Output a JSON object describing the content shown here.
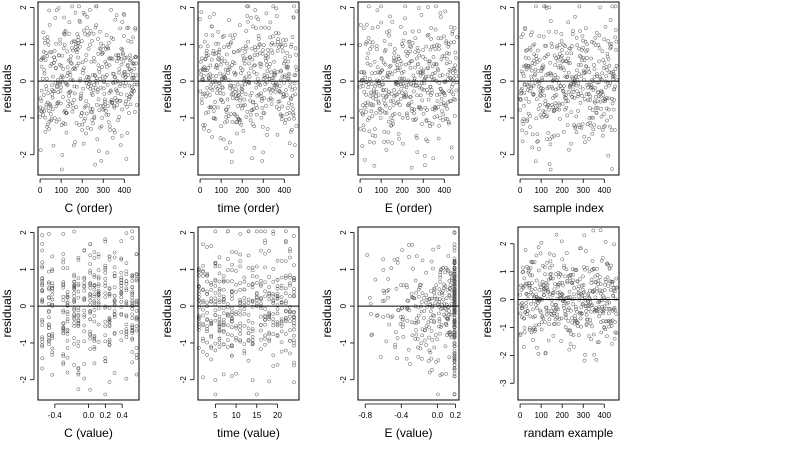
{
  "chart_data": [
    {
      "type": "scatter",
      "xlabel": "C (order)",
      "ylabel": "residuals",
      "xlim": [
        -10,
        470
      ],
      "ylim": [
        -2.55,
        2.15
      ],
      "xticks": [
        0,
        100,
        200,
        300,
        400
      ],
      "xtick_labels": [
        "0",
        "100",
        "200",
        "300",
        "400"
      ],
      "yticks": [
        -2,
        -1,
        0,
        1,
        2
      ],
      "ytick_labels": [
        "-2",
        "-1",
        "0",
        "1",
        "2"
      ],
      "hline": 0,
      "x_sequence": "index",
      "n": 460,
      "seed": 11
    },
    {
      "type": "scatter",
      "xlabel": "time (order)",
      "ylabel": "residuals",
      "xlim": [
        -10,
        470
      ],
      "ylim": [
        -2.55,
        2.15
      ],
      "xticks": [
        0,
        100,
        200,
        300,
        400
      ],
      "xtick_labels": [
        "0",
        "100",
        "200",
        "300",
        "400"
      ],
      "yticks": [
        -2,
        -1,
        0,
        1,
        2
      ],
      "ytick_labels": [
        "-2",
        "-1",
        "0",
        "1",
        "2"
      ],
      "hline": 0,
      "x_sequence": "index",
      "n": 460,
      "seed": 23
    },
    {
      "type": "scatter",
      "xlabel": "E (order)",
      "ylabel": "residuals",
      "xlim": [
        -10,
        470
      ],
      "ylim": [
        -2.55,
        2.15
      ],
      "xticks": [
        0,
        100,
        200,
        300,
        400
      ],
      "xtick_labels": [
        "0",
        "100",
        "200",
        "300",
        "400"
      ],
      "yticks": [
        -2,
        -1,
        0,
        1,
        2
      ],
      "ytick_labels": [
        "-2",
        "-1",
        "0",
        "1",
        "2"
      ],
      "hline": 0,
      "x_sequence": "index",
      "n": 460,
      "seed": 37
    },
    {
      "type": "scatter",
      "xlabel": "sample index",
      "ylabel": "residuals",
      "xlim": [
        -10,
        470
      ],
      "ylim": [
        -2.55,
        2.15
      ],
      "xticks": [
        0,
        100,
        200,
        300,
        400
      ],
      "xtick_labels": [
        "0",
        "100",
        "200",
        "300",
        "400"
      ],
      "yticks": [
        -2,
        -1,
        0,
        1,
        2
      ],
      "ytick_labels": [
        "-2",
        "-1",
        "0",
        "1",
        "2"
      ],
      "hline": 0,
      "x_sequence": "index",
      "n": 460,
      "seed": 41
    },
    {
      "type": "scatter",
      "xlabel": "C (value)",
      "ylabel": "residuals",
      "xlim": [
        -0.6,
        0.6
      ],
      "ylim": [
        -2.55,
        2.15
      ],
      "xticks": [
        -0.4,
        0.0,
        0.2,
        0.4
      ],
      "xtick_labels": [
        "-0.4",
        "0.0",
        "0.2",
        "0.4"
      ],
      "yticks": [
        -2,
        -1,
        0,
        1,
        2
      ],
      "ytick_labels": [
        "-2",
        "-1",
        "0",
        "1",
        "2"
      ],
      "hline": 0,
      "x_levels": [
        -0.55,
        -0.47,
        -0.43,
        -0.3,
        -0.25,
        -0.17,
        -0.12,
        -0.05,
        0.02,
        0.07,
        0.12,
        0.2,
        0.25,
        0.31,
        0.39,
        0.45,
        0.52,
        0.57
      ],
      "n": 420,
      "seed": 53
    },
    {
      "type": "scatter",
      "xlabel": "time (value)",
      "ylabel": "residuals",
      "xlim": [
        0.8,
        25.2
      ],
      "ylim": [
        -2.55,
        2.15
      ],
      "xticks": [
        5,
        10,
        15,
        20
      ],
      "xtick_labels": [
        "5",
        "10",
        "15",
        "20"
      ],
      "yticks": [
        -2,
        -1,
        0,
        1,
        2
      ],
      "ytick_labels": [
        "-2",
        "-1",
        "0",
        "1",
        "2"
      ],
      "hline": 0,
      "x_levels": [
        1,
        2,
        3,
        4,
        5,
        6,
        7,
        8,
        9,
        10,
        11,
        12,
        13,
        14,
        15,
        16,
        17,
        18,
        19,
        20,
        21,
        22,
        23,
        24
      ],
      "n": 430,
      "seed": 67
    },
    {
      "type": "scatter",
      "xlabel": "E (value)",
      "ylabel": "residuals",
      "xlim": [
        -0.88,
        0.24
      ],
      "ylim": [
        -2.55,
        2.15
      ],
      "xticks": [
        -0.8,
        -0.4,
        0.0,
        0.2
      ],
      "xtick_labels": [
        "-0.8",
        "-0.4",
        "0.0",
        "0.2"
      ],
      "yticks": [
        -2,
        -1,
        0,
        1,
        2
      ],
      "ytick_labels": [
        "-2",
        "-1",
        "0",
        "1",
        "2"
      ],
      "hline": 0,
      "x_range": [
        -0.82,
        0.16
      ],
      "x_pile": 0.19,
      "pile_share": 0.38,
      "n": 420,
      "seed": 79
    },
    {
      "type": "scatter",
      "xlabel": "randam example",
      "ylabel": "residuals",
      "xlim": [
        -10,
        470
      ],
      "ylim": [
        -3.6,
        2.6
      ],
      "xticks": [
        0,
        100,
        200,
        300,
        400
      ],
      "xtick_labels": [
        "0",
        "100",
        "200",
        "300",
        "400"
      ],
      "yticks": [
        -3,
        -2,
        -1,
        0,
        1,
        2
      ],
      "ytick_labels": [
        "-3",
        "-2",
        "-1",
        "0",
        "1",
        "2"
      ],
      "hline": 0,
      "x_sequence": "index",
      "n": 460,
      "seed": 97
    }
  ],
  "style": {
    "point_color": "#555555",
    "axis_color": "#000000",
    "reference_line_color": "#000000"
  }
}
